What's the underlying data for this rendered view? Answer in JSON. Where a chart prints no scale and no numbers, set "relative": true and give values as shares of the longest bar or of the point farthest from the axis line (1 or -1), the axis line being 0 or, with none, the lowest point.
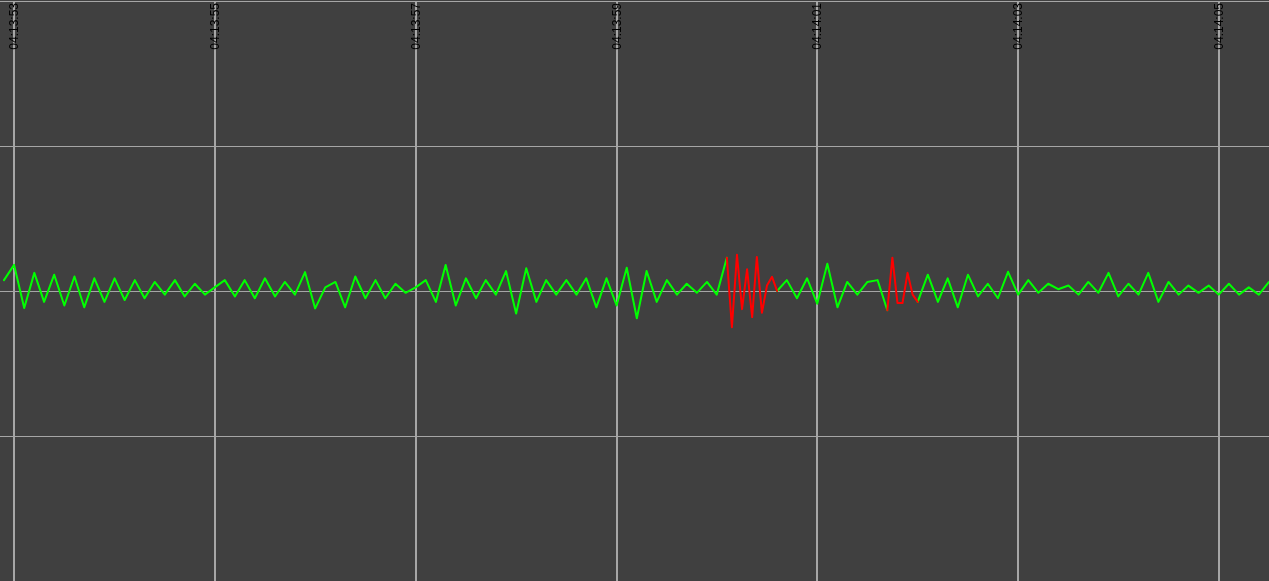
{
  "chart_data": {
    "type": "line",
    "relative": true,
    "grid": true,
    "marker": "none",
    "line_style": "solid",
    "xlim": [
      4.23135,
      4.234861
    ],
    "xticks": [
      {
        "value": 4.231389,
        "label": "04:13:53"
      },
      {
        "value": 4.231944,
        "label": "04:13:55"
      },
      {
        "value": 4.2325,
        "label": "04:13:57"
      },
      {
        "value": 4.233056,
        "label": "04:13:59"
      },
      {
        "value": 4.233611,
        "label": "04:14:01"
      },
      {
        "value": 4.234167,
        "label": "04:14:03"
      },
      {
        "value": 4.234722,
        "label": "04:14:05"
      }
    ],
    "x": [
      4.231361,
      4.231389,
      4.231417,
      4.231445,
      4.231472,
      4.2315,
      4.231528,
      4.231556,
      4.231583,
      4.231611,
      4.231639,
      4.231667,
      4.231695,
      4.231723,
      4.23175,
      4.231778,
      4.231806,
      4.231834,
      4.231861,
      4.231889,
      4.231917,
      4.231944,
      4.231972,
      4.232,
      4.232027,
      4.232055,
      4.232083,
      4.232111,
      4.232138,
      4.232166,
      4.232194,
      4.232222,
      4.23225,
      4.232278,
      4.232305,
      4.232333,
      4.232361,
      4.232389,
      4.232416,
      4.232444,
      4.232472,
      4.2325,
      4.232528,
      4.232556,
      4.232583,
      4.232611,
      4.232639,
      4.232667,
      4.232694,
      4.232722,
      4.23275,
      4.232778,
      4.232806,
      4.232834,
      4.232861,
      4.232889,
      4.232917,
      4.232945,
      4.232972,
      4.233,
      4.233028,
      4.233056,
      4.233084,
      4.233112,
      4.233139,
      4.233167,
      4.233195,
      4.233223,
      4.23325,
      4.233278,
      4.233306,
      4.233333,
      4.233361,
      4.233389,
      4.233416,
      4.233444,
      4.233472,
      4.2335,
      4.233527,
      4.233555,
      4.233583,
      4.233611,
      4.233639,
      4.233667,
      4.233694,
      4.233722,
      4.23375,
      4.233778,
      4.233805,
      4.233833,
      4.233861,
      4.233889,
      4.233917,
      4.233945,
      4.233972,
      4.234,
      4.234028,
      4.234056,
      4.234083,
      4.234111,
      4.234139,
      4.234167,
      4.234195,
      4.234223,
      4.23425,
      4.234278,
      4.234306,
      4.234334,
      4.234361,
      4.234389,
      4.234417,
      4.234444,
      4.234472,
      4.2345,
      4.234527,
      4.234555,
      4.234583,
      4.234611,
      4.234638,
      4.234666,
      4.234694,
      4.234722,
      4.23475,
      4.234778,
      4.234805,
      4.234833,
      4.234861
    ],
    "series": [
      {
        "color": "#00ff00",
        "values": [
          0.3,
          0.72,
          -0.47,
          0.5,
          -0.3,
          0.45,
          -0.4,
          0.4,
          -0.45,
          0.35,
          -0.3,
          0.35,
          -0.25,
          0.3,
          -0.2,
          0.25,
          -0.1,
          0.3,
          -0.15,
          0.2,
          -0.1,
          0.1,
          0.3,
          -0.15,
          0.3,
          -0.2,
          0.35,
          -0.15,
          0.25,
          -0.1,
          0.52,
          -0.48,
          0.1,
          0.25,
          -0.45,
          0.4,
          -0.2,
          0.3,
          -0.2,
          0.2,
          -0.05,
          0.1,
          0.3,
          -0.3,
          0.72,
          -0.4,
          0.35,
          -0.2,
          0.3,
          -0.1,
          0.55,
          -0.62,
          0.63,
          -0.3,
          0.3,
          -0.1,
          0.3,
          -0.1,
          0.35,
          -0.45,
          0.35,
          -0.4,
          0.64,
          -0.75,
          0.55,
          -0.3,
          0.3,
          -0.1,
          0.2,
          -0.05,
          0.25,
          -0.1,
          0.92,
          null,
          null,
          null,
          null,
          0,
          0.3,
          -0.2,
          0.35,
          -0.35,
          0.75,
          -0.45,
          0.25,
          -0.1,
          0.25,
          0.3,
          -0.53,
          null,
          null,
          -0.3,
          0.45,
          -0.3,
          0.35,
          -0.45,
          0.45,
          -0.15,
          0.2,
          -0.2,
          0.53,
          -0.1,
          0.3,
          -0.05,
          0.2,
          0.05,
          0.15,
          -0.1,
          0.25,
          -0.05,
          0.5,
          -0.15,
          0.2,
          -0.1,
          0.5,
          -0.3,
          0.25,
          -0.1,
          0.15,
          -0.05,
          0.15,
          -0.1,
          0.2,
          -0.1,
          0.1,
          -0.1,
          0.25
        ]
      },
      {
        "color": "#ff0000",
        "x": [
          4.233361,
          4.233375,
          4.233389,
          4.233403,
          4.233417,
          4.233431,
          4.233444,
          4.233458,
          4.233472,
          4.233486,
          4.2335,
          4.2336,
          4.233805,
          4.233819,
          4.233833,
          4.233847,
          4.233861,
          4.233875,
          4.233889
        ],
        "values": [
          0.92,
          -1,
          1,
          -0.5,
          0.6,
          -0.72,
          0.94,
          -0.6,
          0.15,
          0.39,
          0,
          null,
          -0.53,
          0.92,
          -0.33,
          -0.33,
          0.5,
          -0.1,
          -0.3
        ]
      }
    ]
  }
}
